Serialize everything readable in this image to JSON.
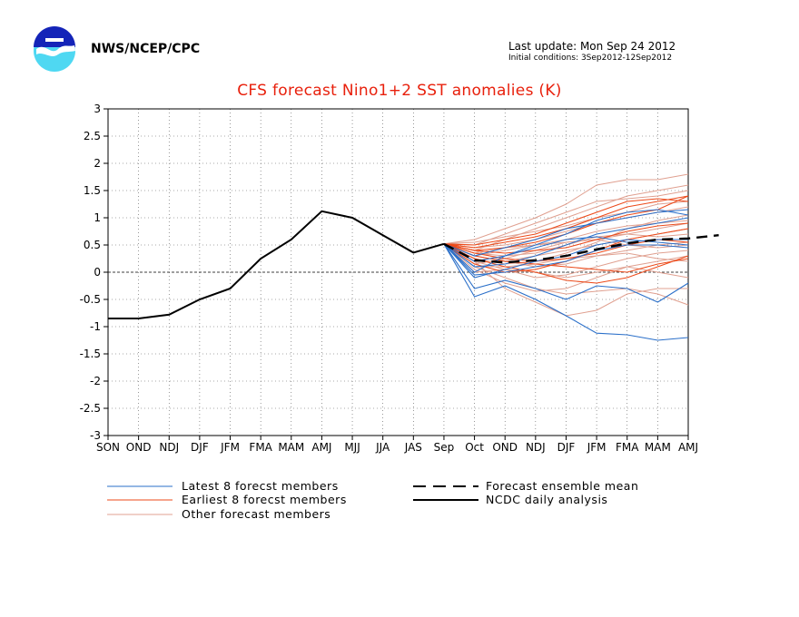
{
  "header": {
    "org": "NWS/NCEP/CPC",
    "last_update": "Last update: Mon Sep 24 2012",
    "initial_conditions": "Initial conditions: 3Sep2012-12Sep2012"
  },
  "colors": {
    "title": "#e8200c",
    "latest": "#2a6fc9",
    "earliest": "#ec4a1a",
    "other": "#e0a090",
    "mean": "#000000",
    "analysis": "#000000"
  },
  "chart_data": {
    "type": "line",
    "title": "CFS forecast Nino1+2 SST anomalies (K)",
    "xlabel": "",
    "ylabel": "",
    "categories": [
      "SON",
      "OND",
      "NDJ",
      "DJF",
      "JFM",
      "FMA",
      "MAM",
      "AMJ",
      "MJJ",
      "JJA",
      "JAS",
      "Sep",
      "Oct",
      "OND",
      "NDJ",
      "DJF",
      "JFM",
      "FMA",
      "MAM",
      "AMJ"
    ],
    "ylim": [
      -3,
      3
    ],
    "yticks": [
      3,
      2.5,
      2,
      1.5,
      1,
      0.5,
      0,
      -0.5,
      -1,
      -1.5,
      -2,
      -2.5,
      -3
    ],
    "grid": true,
    "zero_line": true,
    "legend_position": "bottom",
    "legend": {
      "latest": "Latest 8 forecst members",
      "earliest": "Earliest 8 forecst members",
      "other": "Other forecast members",
      "mean": "Forecast ensemble mean",
      "analysis": "NCDC daily analysis"
    },
    "analysis": {
      "name": "NCDC daily analysis",
      "x_start": 0,
      "values": [
        -0.85,
        -0.85,
        -0.78,
        -0.5,
        -0.3,
        0.25,
        0.6,
        1.12,
        1.0,
        0.68,
        0.36,
        0.52
      ]
    },
    "ensemble_mean": {
      "name": "Forecast ensemble mean",
      "x_start": 11,
      "values": [
        0.52,
        0.22,
        0.18,
        0.22,
        0.3,
        0.42,
        0.53,
        0.6,
        0.62,
        0.68
      ]
    },
    "latest_members": [
      [
        0.52,
        -0.45,
        -0.25,
        -0.5,
        -0.8,
        -1.12,
        -1.15,
        -1.25,
        -1.2
      ],
      [
        0.52,
        -0.3,
        -0.15,
        -0.3,
        -0.5,
        -0.25,
        -0.3,
        -0.55,
        -0.2
      ],
      [
        0.52,
        0.0,
        0.3,
        0.5,
        0.7,
        0.95,
        1.1,
        1.15,
        1.05
      ],
      [
        0.52,
        0.1,
        0.15,
        0.3,
        0.5,
        0.7,
        0.8,
        0.9,
        1.0
      ],
      [
        0.52,
        0.2,
        0.3,
        0.45,
        0.6,
        0.65,
        0.55,
        0.6,
        0.6
      ],
      [
        0.52,
        -0.05,
        0.0,
        0.1,
        0.2,
        0.4,
        0.5,
        0.5,
        0.45
      ],
      [
        0.52,
        0.3,
        0.45,
        0.6,
        0.8,
        0.9,
        1.0,
        1.1,
        1.15
      ],
      [
        0.52,
        -0.1,
        0.05,
        0.2,
        0.3,
        0.5,
        0.6,
        0.55,
        0.5
      ]
    ],
    "earliest_members": [
      [
        0.52,
        0.45,
        0.55,
        0.65,
        0.8,
        1.0,
        1.2,
        1.3,
        1.4
      ],
      [
        0.52,
        0.4,
        0.35,
        0.4,
        0.45,
        0.6,
        0.75,
        0.85,
        0.9
      ],
      [
        0.52,
        0.25,
        0.1,
        0.0,
        -0.15,
        -0.2,
        -0.1,
        0.1,
        0.3
      ],
      [
        0.52,
        0.5,
        0.6,
        0.7,
        0.9,
        1.1,
        1.3,
        1.35,
        1.3
      ],
      [
        0.52,
        0.15,
        0.0,
        0.05,
        0.2,
        0.4,
        0.6,
        0.7,
        0.8
      ],
      [
        0.52,
        0.35,
        0.25,
        0.2,
        0.25,
        0.35,
        0.5,
        0.6,
        0.55
      ],
      [
        0.52,
        0.3,
        0.2,
        0.15,
        0.1,
        0.05,
        0.0,
        0.15,
        0.25
      ],
      [
        0.52,
        0.4,
        0.45,
        0.55,
        0.7,
        0.9,
        1.05,
        1.15,
        1.4
      ]
    ],
    "other_members": [
      [
        0.52,
        0.6,
        0.8,
        1.0,
        1.25,
        1.6,
        1.7,
        1.7,
        1.8
      ],
      [
        0.52,
        0.4,
        0.6,
        0.8,
        1.0,
        1.2,
        1.4,
        1.5,
        1.6
      ],
      [
        0.52,
        0.2,
        -0.3,
        -0.55,
        -0.8,
        -0.7,
        -0.4,
        -0.3,
        -0.3
      ],
      [
        0.52,
        0.1,
        -0.1,
        -0.3,
        -0.4,
        -0.35,
        -0.3,
        -0.4,
        -0.6
      ],
      [
        0.52,
        0.3,
        0.2,
        0.3,
        0.4,
        0.5,
        0.6,
        0.7,
        0.8
      ],
      [
        0.52,
        0.45,
        0.5,
        0.6,
        0.75,
        0.9,
        1.0,
        1.1,
        1.2
      ],
      [
        0.52,
        0.0,
        0.05,
        0.0,
        -0.1,
        0.0,
        0.1,
        0.2,
        0.3
      ],
      [
        0.52,
        0.35,
        0.3,
        0.35,
        0.5,
        0.65,
        0.7,
        0.8,
        0.9
      ],
      [
        0.52,
        0.15,
        0.25,
        0.4,
        0.55,
        0.6,
        0.5,
        0.45,
        0.5
      ],
      [
        0.52,
        0.5,
        0.7,
        0.9,
        1.1,
        1.3,
        1.35,
        1.4,
        1.5
      ],
      [
        0.52,
        0.05,
        -0.2,
        -0.35,
        -0.3,
        -0.1,
        0.1,
        0.0,
        -0.1
      ],
      [
        0.52,
        0.25,
        0.15,
        0.2,
        0.35,
        0.55,
        0.8,
        0.95,
        1.05
      ],
      [
        0.52,
        0.4,
        0.2,
        0.1,
        0.15,
        0.3,
        0.35,
        0.25,
        0.2
      ],
      [
        0.52,
        0.3,
        0.4,
        0.5,
        0.6,
        0.75,
        0.85,
        0.9,
        0.95
      ],
      [
        0.52,
        0.2,
        0.05,
        -0.1,
        -0.05,
        0.1,
        0.25,
        0.35,
        0.4
      ],
      [
        0.52,
        0.55,
        0.65,
        0.75,
        0.85,
        1.0,
        1.1,
        1.25,
        1.3
      ],
      [
        0.52,
        0.1,
        0.1,
        0.15,
        0.25,
        0.3,
        0.4,
        0.5,
        0.55
      ],
      [
        0.52,
        0.35,
        0.45,
        0.5,
        0.55,
        0.6,
        0.7,
        0.65,
        0.7
      ]
    ]
  }
}
